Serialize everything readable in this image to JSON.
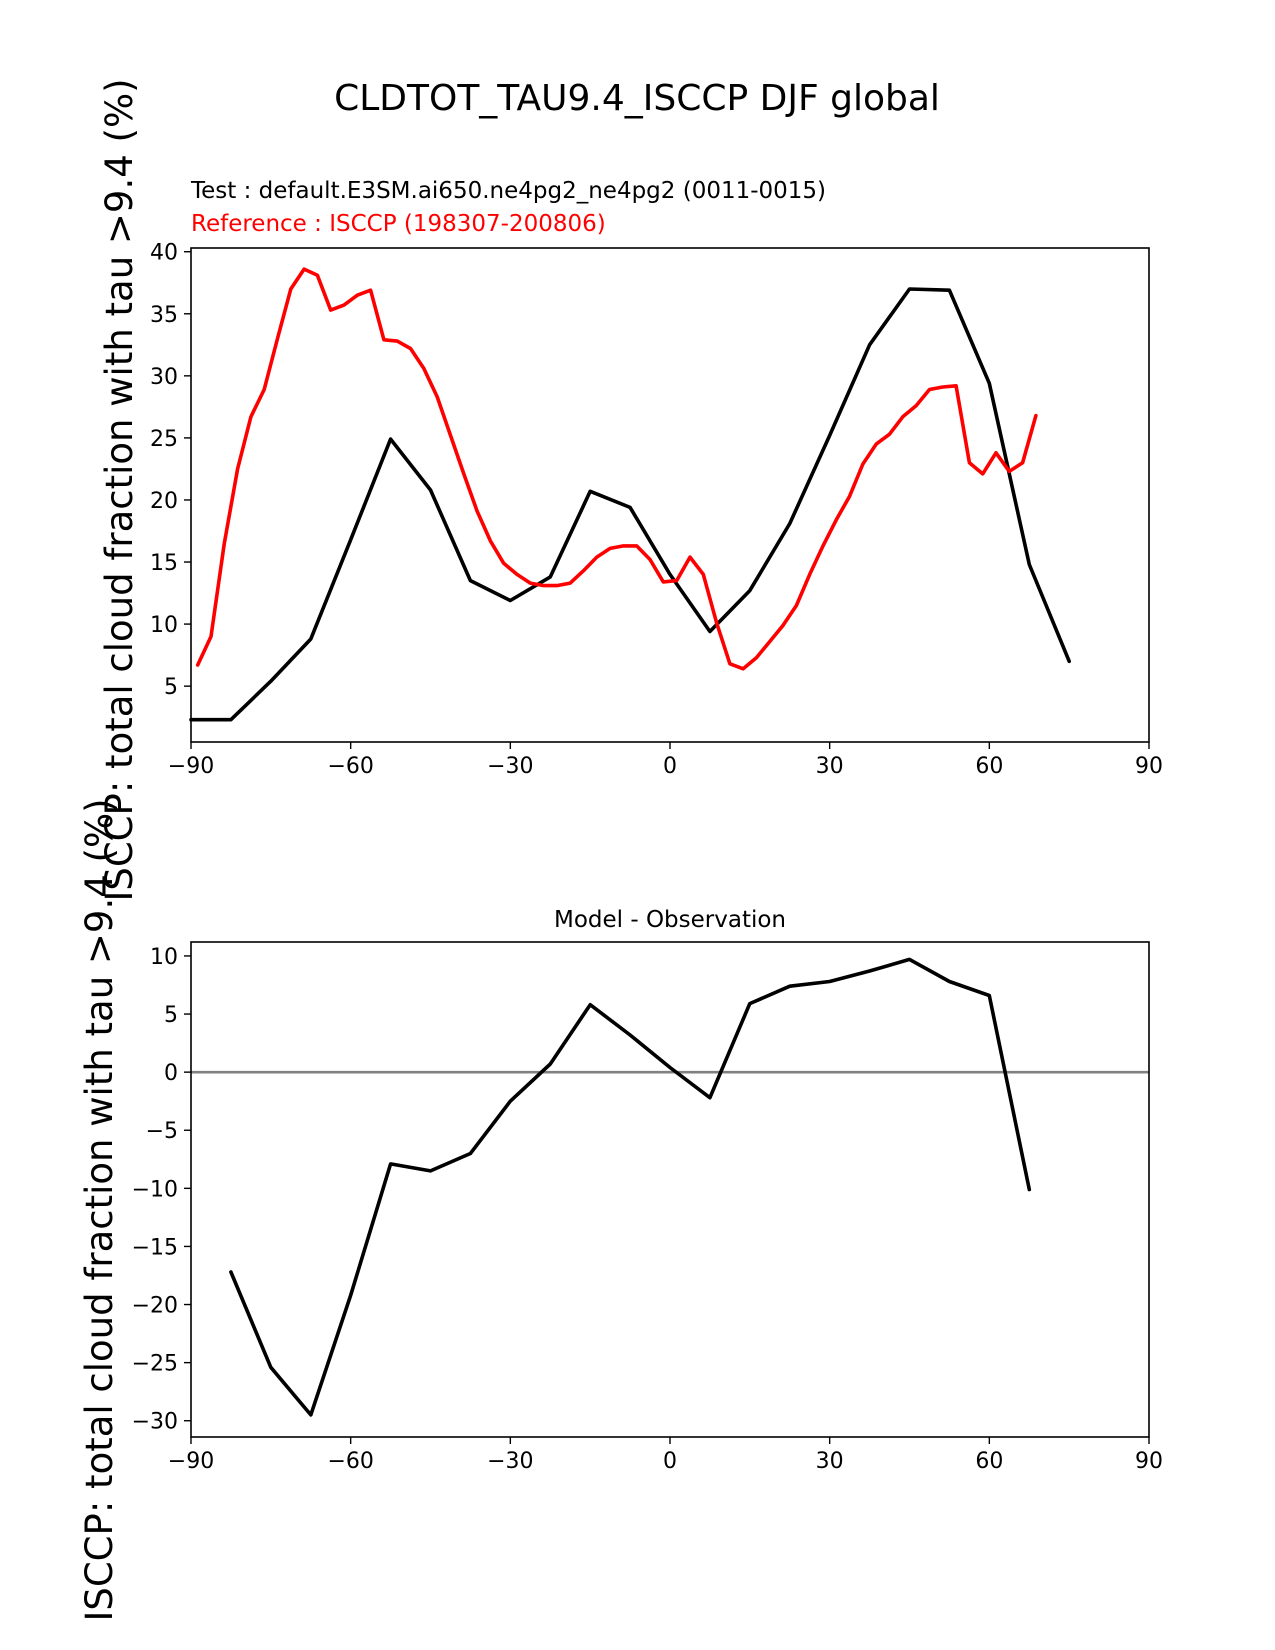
{
  "figure": {
    "suptitle": "CLDTOT_TAU9.4_ISCCP DJF global",
    "test_label": "Test : default.E3SM.ai650.ne4pg2_ne4pg2 (0011-0015)",
    "ref_label": "Reference : ISCCP (198307-200806)",
    "ylabel": "ISCCP: total cloud fraction with tau >9.4 (%)",
    "colors": {
      "test": "#000000",
      "ref": "#ff0000",
      "zero": "#808080"
    }
  },
  "chart_data": [
    {
      "type": "line",
      "title": "",
      "xlabel": "",
      "ylabel": "ISCCP: total cloud fraction with tau >9.4 (%)",
      "xlim": [
        -90,
        90
      ],
      "ylim": [
        0.5,
        40.3
      ],
      "xticks": [
        -90,
        -60,
        -30,
        0,
        30,
        60,
        90
      ],
      "xtick_labels": [
        "−90",
        "−60",
        "−30",
        "0",
        "30",
        "60",
        "90"
      ],
      "yticks": [
        5,
        10,
        15,
        20,
        25,
        30,
        35,
        40
      ],
      "ytick_labels": [
        "5",
        "10",
        "15",
        "20",
        "25",
        "30",
        "35",
        "40"
      ],
      "series": [
        {
          "name": "Test",
          "color": "#000000",
          "x": [
            -90,
            -82.5,
            -75,
            -67.5,
            -60,
            -52.5,
            -45,
            -37.5,
            -30,
            -22.5,
            -15,
            -7.5,
            0,
            7.5,
            15,
            22.5,
            30,
            37.5,
            45,
            52.5,
            60,
            67.5,
            75
          ],
          "y": [
            2.3,
            2.3,
            5.4,
            8.8,
            16.8,
            24.9,
            20.8,
            13.5,
            11.9,
            13.8,
            20.7,
            19.4,
            14.0,
            9.4,
            12.7,
            18.1,
            25.2,
            32.5,
            37.0,
            36.9,
            29.4,
            14.8,
            7.0
          ]
        },
        {
          "name": "Reference",
          "color": "#ff0000",
          "x": [
            -88.75,
            -86.25,
            -83.75,
            -81.25,
            -78.75,
            -76.25,
            -73.75,
            -71.25,
            -68.75,
            -66.25,
            -63.75,
            -61.25,
            -58.75,
            -56.25,
            -53.75,
            -51.25,
            -48.75,
            -46.25,
            -43.75,
            -41.25,
            -38.75,
            -36.25,
            -33.75,
            -31.25,
            -28.75,
            -26.25,
            -23.75,
            -21.25,
            -18.75,
            -16.25,
            -13.75,
            -11.25,
            -8.75,
            -6.25,
            -3.75,
            -1.25,
            1.25,
            3.75,
            6.25,
            8.75,
            11.25,
            13.75,
            16.25,
            18.75,
            21.25,
            23.75,
            26.25,
            28.75,
            31.25,
            33.75,
            36.25,
            38.75,
            41.25,
            43.75,
            46.25,
            48.75,
            51.25,
            53.75,
            56.25,
            58.75,
            61.25,
            63.75,
            66.25,
            68.75
          ],
          "y": [
            6.7,
            9.0,
            16.5,
            22.5,
            26.7,
            28.9,
            33.0,
            37.0,
            38.6,
            38.1,
            35.3,
            35.7,
            36.5,
            36.9,
            32.9,
            32.8,
            32.2,
            30.6,
            28.3,
            25.2,
            22.1,
            19.1,
            16.7,
            14.9,
            14.0,
            13.3,
            13.1,
            13.1,
            13.3,
            14.3,
            15.4,
            16.1,
            16.3,
            16.3,
            15.2,
            13.4,
            13.5,
            15.4,
            14.0,
            10.1,
            6.8,
            6.4,
            7.3,
            8.6,
            9.9,
            11.5,
            14.0,
            16.3,
            18.4,
            20.3,
            22.9,
            24.5,
            25.3,
            26.7,
            27.6,
            28.9,
            29.1,
            29.2,
            23.0,
            22.1,
            23.8,
            22.3,
            23.0,
            26.8
          ]
        }
      ]
    },
    {
      "type": "line",
      "title": "Model - Observation",
      "xlabel": "",
      "ylabel": "ISCCP: total cloud fraction with tau >9.4 (%)",
      "xlim": [
        -90,
        90
      ],
      "ylim": [
        -31.4,
        11.2
      ],
      "xticks": [
        -90,
        -60,
        -30,
        0,
        30,
        60,
        90
      ],
      "xtick_labels": [
        "−90",
        "−60",
        "−30",
        "0",
        "30",
        "60",
        "90"
      ],
      "yticks": [
        -30,
        -25,
        -20,
        -15,
        -10,
        -5,
        0,
        5,
        10
      ],
      "ytick_labels": [
        "−30",
        "−25",
        "−20",
        "−15",
        "−10",
        "−5",
        "0",
        "5",
        "10"
      ],
      "zero_line": true,
      "series": [
        {
          "name": "Model - Observation",
          "color": "#000000",
          "x": [
            -82.5,
            -75,
            -67.5,
            -60,
            -52.5,
            -45,
            -37.5,
            -30,
            -22.5,
            -15,
            -7.5,
            0,
            7.5,
            15,
            22.5,
            30,
            37.5,
            45,
            52.5,
            60,
            67.5
          ],
          "y": [
            -17.2,
            -25.4,
            -29.5,
            -19.2,
            -7.9,
            -8.5,
            -7.0,
            -2.5,
            0.7,
            5.8,
            3.2,
            0.4,
            -2.2,
            5.9,
            7.4,
            7.8,
            8.7,
            9.7,
            7.8,
            6.6,
            -10.1
          ]
        }
      ]
    }
  ]
}
